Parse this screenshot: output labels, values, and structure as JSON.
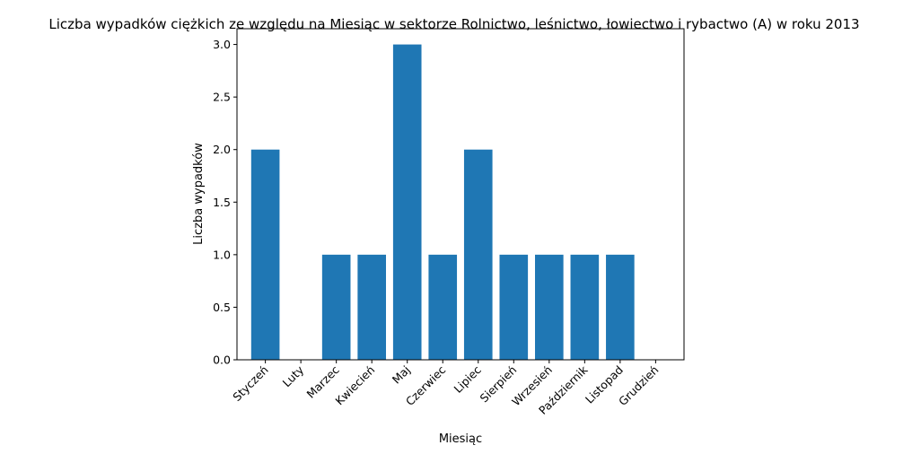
{
  "chart_data": {
    "type": "bar",
    "title": "Liczba wypadków ciężkich ze względu na Miesiąc w sektorze Rolnictwo, leśnictwo, łowiectwo i rybactwo (A) w roku 2013",
    "xlabel": "Miesiąc",
    "ylabel": "Liczba wypadków",
    "categories": [
      "Styczeń",
      "Luty",
      "Marzec",
      "Kwiecień",
      "Maj",
      "Czerwiec",
      "Lipiec",
      "Sierpień",
      "Wrzesień",
      "Październik",
      "Listopad",
      "Grudzień"
    ],
    "values": [
      2,
      0,
      1,
      1,
      3,
      1,
      2,
      1,
      1,
      1,
      1,
      0
    ],
    "ylim": [
      0,
      3.15
    ],
    "yticks": [
      "0.0",
      "0.5",
      "1.0",
      "1.5",
      "2.0",
      "2.5",
      "3.0"
    ],
    "grid": false,
    "colors": {
      "bar": "#1f77b4"
    }
  }
}
